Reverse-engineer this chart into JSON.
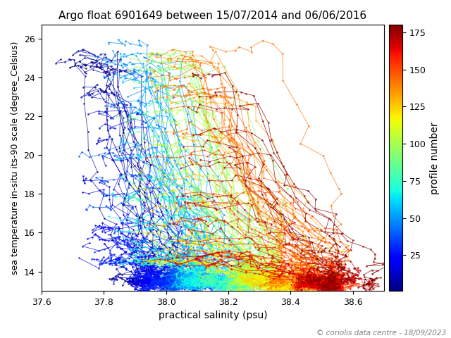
{
  "title": "Argo float 6901649 between 15/07/2014 and 06/06/2016",
  "xlabel": "practical salinity (psu)",
  "ylabel": "sea temperature in-situ its-90 scale (degree_Celsius)",
  "colorbar_label": "profile number",
  "colorbar_ticks": [
    25,
    50,
    75,
    100,
    125,
    150,
    175
  ],
  "xlim": [
    37.6,
    38.7
  ],
  "ylim": [
    13.0,
    26.7
  ],
  "xticks": [
    37.6,
    37.8,
    38.0,
    38.2,
    38.4,
    38.6
  ],
  "yticks": [
    14,
    16,
    18,
    20,
    22,
    24,
    26
  ],
  "n_profiles": 180,
  "copyright_text": "© coriolis data centre - 18/09/2023",
  "cmap": "jet",
  "vmin": 1,
  "vmax": 180,
  "figsize": [
    6.4,
    4.8
  ],
  "dpi": 100
}
